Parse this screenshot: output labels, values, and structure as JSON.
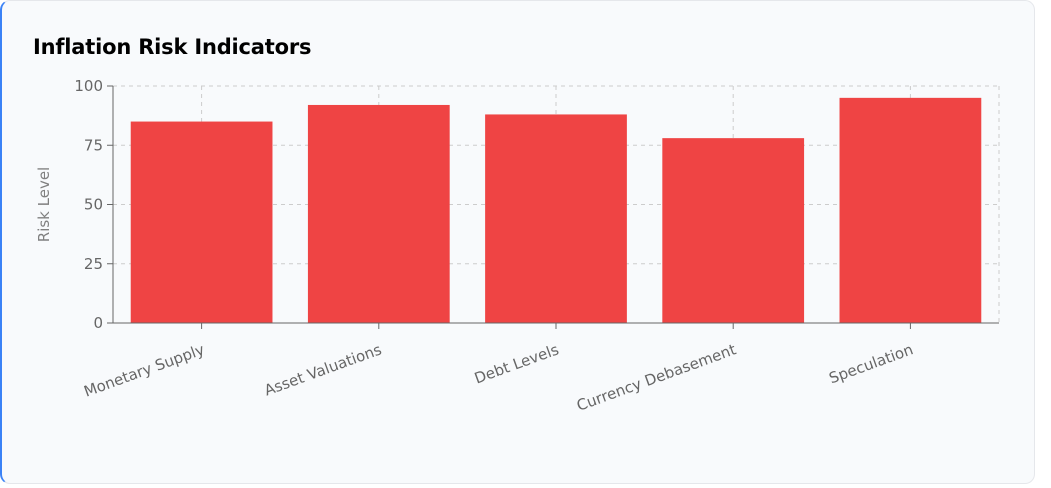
{
  "colors": {
    "bar": "#ef4444",
    "grid": "#cccccc",
    "axis": "#666666",
    "card": "#f8fafc"
  },
  "chart_data": {
    "type": "bar",
    "title": "Inflation Risk Indicators",
    "xlabel": "",
    "ylabel": "Risk Level",
    "categories": [
      "Monetary Supply",
      "Asset Valuations",
      "Debt Levels",
      "Currency Debasement",
      "Speculation"
    ],
    "values": [
      85,
      92,
      88,
      78,
      95
    ],
    "ylim": [
      0,
      100
    ],
    "yticks": [
      "0",
      "25",
      "50",
      "75",
      "100"
    ],
    "grid": true,
    "legend": "none"
  }
}
